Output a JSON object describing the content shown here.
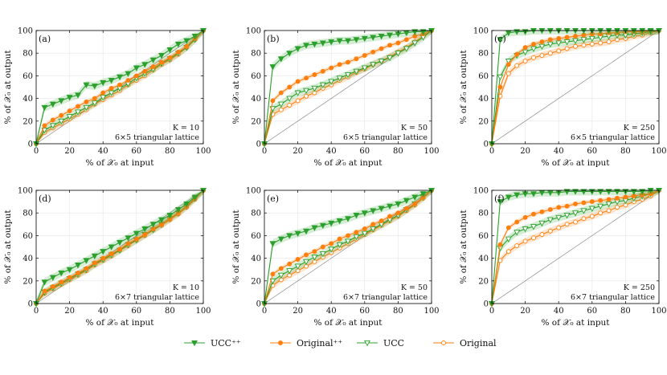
{
  "chart_data": {
    "type": "line",
    "xlabel": "% of 𝒳₀ at input",
    "ylabel": "% of 𝒳₀ at output",
    "xlim": [
      0,
      100
    ],
    "ylim": [
      0,
      100
    ],
    "xticks": [
      0,
      20,
      40,
      60,
      80,
      100
    ],
    "yticks": [
      0,
      20,
      40,
      60,
      80,
      100
    ],
    "grid": true,
    "legend_position": "bottom-center",
    "colors": {
      "ucc_pp": "#2ca02c",
      "original_pp": "#ff7f0e",
      "ucc": "#2ca02c",
      "original": "#ff7f0e",
      "diagonal": "#888888"
    },
    "legend": [
      {
        "key": "ucc_pp",
        "label": "UCC⁺⁺",
        "marker": "triangle-filled"
      },
      {
        "key": "original_pp",
        "label": "Original⁺⁺",
        "marker": "circle-filled"
      },
      {
        "key": "ucc",
        "label": "UCC",
        "marker": "triangle-open"
      },
      {
        "key": "original",
        "label": "Original",
        "marker": "circle-open"
      }
    ],
    "x": [
      0,
      5,
      10,
      15,
      20,
      25,
      30,
      35,
      40,
      45,
      50,
      55,
      60,
      65,
      70,
      75,
      80,
      85,
      90,
      95,
      100
    ],
    "panels": [
      {
        "label": "(a)",
        "k_text": "K = 10",
        "lattice": "6×5 triangular lattice",
        "series": {
          "ucc_pp": [
            0,
            32,
            35,
            38,
            41,
            43,
            52,
            51,
            54,
            56,
            59,
            62,
            67,
            70,
            74,
            78,
            83,
            88,
            91,
            95,
            100
          ],
          "original_pp": [
            0,
            16,
            21,
            25,
            29,
            33,
            37,
            40,
            45,
            49,
            52,
            56,
            60,
            64,
            68,
            72,
            76,
            81,
            86,
            93,
            100
          ],
          "ucc": [
            0,
            12,
            16,
            20,
            24,
            28,
            32,
            36,
            41,
            45,
            49,
            53,
            58,
            62,
            66,
            71,
            75,
            80,
            85,
            92,
            100
          ],
          "original": [
            0,
            10,
            14,
            18,
            22,
            26,
            30,
            35,
            39,
            43,
            47,
            52,
            56,
            60,
            65,
            70,
            74,
            79,
            85,
            92,
            100
          ]
        }
      },
      {
        "label": "(b)",
        "k_text": "K = 50",
        "lattice": "6×5 triangular lattice",
        "series": {
          "ucc_pp": [
            0,
            68,
            75,
            80,
            84,
            87,
            88,
            89,
            90,
            91,
            91,
            92,
            93,
            94,
            95,
            96,
            97,
            98,
            99,
            99,
            100
          ],
          "original_pp": [
            0,
            38,
            45,
            50,
            55,
            58,
            61,
            64,
            67,
            70,
            72,
            75,
            78,
            81,
            84,
            87,
            89,
            92,
            95,
            97,
            100
          ],
          "ucc": [
            0,
            31,
            35,
            40,
            45,
            47,
            49,
            52,
            55,
            58,
            61,
            64,
            67,
            70,
            73,
            76,
            80,
            84,
            89,
            94,
            100
          ],
          "original": [
            0,
            26,
            30,
            34,
            38,
            42,
            45,
            49,
            52,
            56,
            59,
            63,
            66,
            70,
            73,
            77,
            81,
            85,
            90,
            95,
            100
          ]
        }
      },
      {
        "label": "(c)",
        "k_text": "K = 250",
        "lattice": "6×5 triangular lattice",
        "series": {
          "ucc_pp": [
            0,
            92,
            98,
            99,
            99,
            100,
            100,
            100,
            100,
            100,
            100,
            100,
            100,
            100,
            100,
            100,
            100,
            100,
            100,
            100,
            100
          ],
          "original_pp": [
            0,
            50,
            70,
            79,
            85,
            88,
            90,
            92,
            93,
            94,
            95,
            96,
            97,
            97,
            98,
            98,
            99,
            99,
            99,
            100,
            100
          ],
          "ucc": [
            0,
            59,
            73,
            78,
            81,
            84,
            86,
            88,
            89,
            90,
            91,
            92,
            93,
            94,
            95,
            96,
            96,
            97,
            98,
            99,
            100
          ],
          "original": [
            0,
            42,
            62,
            69,
            73,
            76,
            78,
            80,
            82,
            84,
            86,
            87,
            88,
            89,
            90,
            92,
            93,
            95,
            96,
            98,
            100
          ]
        }
      },
      {
        "label": "(d)",
        "k_text": "K = 10",
        "lattice": "6×7 triangular lattice",
        "series": {
          "ucc_pp": [
            0,
            19,
            23,
            27,
            30,
            34,
            38,
            42,
            46,
            50,
            54,
            58,
            62,
            66,
            70,
            74,
            78,
            83,
            88,
            94,
            100
          ],
          "original_pp": [
            0,
            11,
            15,
            19,
            23,
            27,
            31,
            36,
            40,
            44,
            48,
            53,
            57,
            61,
            66,
            70,
            75,
            80,
            86,
            93,
            100
          ],
          "ucc": [
            0,
            10,
            14,
            18,
            22,
            26,
            30,
            35,
            39,
            43,
            47,
            52,
            56,
            61,
            65,
            70,
            75,
            80,
            86,
            93,
            100
          ],
          "original": [
            0,
            9,
            13,
            17,
            21,
            25,
            29,
            34,
            38,
            42,
            47,
            51,
            56,
            60,
            65,
            69,
            74,
            79,
            85,
            92,
            100
          ]
        }
      },
      {
        "label": "(e)",
        "k_text": "K = 50",
        "lattice": "6×7 triangular lattice",
        "series": {
          "ucc_pp": [
            0,
            53,
            57,
            60,
            62,
            64,
            67,
            69,
            71,
            73,
            75,
            78,
            80,
            82,
            84,
            86,
            88,
            91,
            94,
            97,
            100
          ],
          "original_pp": [
            0,
            26,
            31,
            35,
            39,
            43,
            46,
            50,
            53,
            57,
            60,
            63,
            66,
            70,
            73,
            77,
            80,
            84,
            88,
            94,
            100
          ],
          "ucc": [
            0,
            20,
            25,
            29,
            33,
            37,
            41,
            44,
            48,
            52,
            55,
            59,
            62,
            66,
            70,
            74,
            78,
            83,
            88,
            94,
            100
          ],
          "original": [
            0,
            16,
            21,
            25,
            29,
            33,
            37,
            41,
            45,
            49,
            53,
            57,
            61,
            65,
            69,
            73,
            77,
            82,
            87,
            93,
            100
          ]
        }
      },
      {
        "label": "(f)",
        "k_text": "K = 250",
        "lattice": "6×7 triangular lattice",
        "series": {
          "ucc_pp": [
            0,
            90,
            94,
            96,
            97,
            97,
            98,
            98,
            98,
            99,
            99,
            99,
            99,
            99,
            99,
            99,
            99,
            99,
            99,
            100,
            100
          ],
          "original_pp": [
            0,
            52,
            67,
            72,
            76,
            79,
            81,
            83,
            85,
            86,
            88,
            89,
            90,
            91,
            92,
            93,
            94,
            95,
            96,
            97,
            100
          ],
          "ucc": [
            0,
            49,
            57,
            63,
            66,
            68,
            71,
            74,
            76,
            78,
            80,
            82,
            84,
            86,
            88,
            90,
            91,
            93,
            95,
            97,
            100
          ],
          "original": [
            0,
            38,
            46,
            51,
            55,
            58,
            61,
            64,
            67,
            70,
            72,
            75,
            77,
            80,
            82,
            85,
            87,
            90,
            92,
            95,
            100
          ]
        }
      }
    ]
  }
}
